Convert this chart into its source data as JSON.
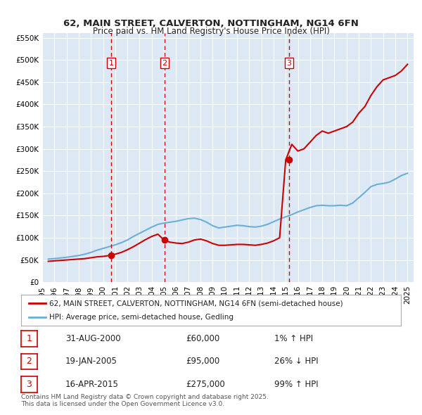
{
  "title_line1": "62, MAIN STREET, CALVERTON, NOTTINGHAM, NG14 6FN",
  "title_line2": "Price paid vs. HM Land Registry's House Price Index (HPI)",
  "background_color": "#ffffff",
  "plot_bg_color": "#dce9f5",
  "grid_color": "#ffffff",
  "ylabel_values": [
    "£0",
    "£50K",
    "£100K",
    "£150K",
    "£200K",
    "£250K",
    "£300K",
    "£350K",
    "£400K",
    "£450K",
    "£500K",
    "£550K"
  ],
  "ytick_values": [
    0,
    50000,
    100000,
    150000,
    200000,
    250000,
    300000,
    350000,
    400000,
    450000,
    500000,
    550000
  ],
  "ylim": [
    0,
    560000
  ],
  "xlim_start": 1995,
  "xlim_end": 2025.5,
  "hpi_color": "#6baed6",
  "price_color": "#cc0000",
  "vline_color": "#cc0000",
  "sales": [
    {
      "label": "1",
      "date_num": 2000.664,
      "price": 60000,
      "pct": "1%",
      "dir": "↑",
      "date_str": "31-AUG-2000"
    },
    {
      "label": "2",
      "date_num": 2005.055,
      "price": 95000,
      "pct": "26%",
      "dir": "↓",
      "date_str": "19-JAN-2005"
    },
    {
      "label": "3",
      "date_num": 2015.286,
      "price": 275000,
      "pct": "99%",
      "dir": "↑",
      "date_str": "16-APR-2015"
    }
  ],
  "legend_line1": "62, MAIN STREET, CALVERTON, NOTTINGHAM, NG14 6FN (semi-detached house)",
  "legend_line2": "HPI: Average price, semi-detached house, Gedling",
  "footer": "Contains HM Land Registry data © Crown copyright and database right 2025.\nThis data is licensed under the Open Government Licence v3.0.",
  "hpi_data_x": [
    1995.5,
    1996.0,
    1996.5,
    1997.0,
    1997.5,
    1998.0,
    1998.5,
    1999.0,
    1999.5,
    2000.0,
    2000.5,
    2001.0,
    2001.5,
    2002.0,
    2002.5,
    2003.0,
    2003.5,
    2004.0,
    2004.5,
    2005.0,
    2005.5,
    2006.0,
    2006.5,
    2007.0,
    2007.5,
    2008.0,
    2008.5,
    2009.0,
    2009.5,
    2010.0,
    2010.5,
    2011.0,
    2011.5,
    2012.0,
    2012.5,
    2013.0,
    2013.5,
    2014.0,
    2014.5,
    2015.0,
    2015.5,
    2016.0,
    2016.5,
    2017.0,
    2017.5,
    2018.0,
    2018.5,
    2019.0,
    2019.5,
    2020.0,
    2020.5,
    2021.0,
    2021.5,
    2022.0,
    2022.5,
    2023.0,
    2023.5,
    2024.0,
    2024.5,
    2025.0
  ],
  "hpi_data_y": [
    52000,
    53000,
    54500,
    56000,
    58000,
    60000,
    63000,
    67000,
    72000,
    76000,
    80000,
    84000,
    89000,
    95000,
    103000,
    110000,
    117000,
    124000,
    130000,
    133000,
    135000,
    137000,
    140000,
    143000,
    144000,
    141000,
    135000,
    127000,
    122000,
    124000,
    126000,
    128000,
    127000,
    125000,
    124000,
    126000,
    130000,
    136000,
    142000,
    147000,
    152000,
    158000,
    163000,
    168000,
    172000,
    173000,
    172000,
    172000,
    173000,
    172000,
    178000,
    190000,
    202000,
    215000,
    220000,
    222000,
    225000,
    232000,
    240000,
    245000
  ],
  "price_data_x": [
    1995.5,
    1996.0,
    1996.5,
    1997.0,
    1997.5,
    1998.0,
    1998.5,
    1999.0,
    1999.5,
    2000.0,
    2000.5,
    2001.0,
    2001.5,
    2002.0,
    2002.5,
    2003.0,
    2003.5,
    2004.0,
    2004.5,
    2005.0,
    2005.5,
    2006.0,
    2006.5,
    2007.0,
    2007.5,
    2008.0,
    2008.5,
    2009.0,
    2009.5,
    2010.0,
    2010.5,
    2011.0,
    2011.5,
    2012.0,
    2012.5,
    2013.0,
    2013.5,
    2014.0,
    2014.5,
    2015.0,
    2015.5,
    2016.0,
    2016.5,
    2017.0,
    2017.5,
    2018.0,
    2018.5,
    2019.0,
    2019.5,
    2020.0,
    2020.5,
    2021.0,
    2021.5,
    2022.0,
    2022.5,
    2023.0,
    2023.5,
    2024.0,
    2024.5,
    2025.0
  ],
  "price_data_y": [
    47000,
    48000,
    49000,
    50000,
    51000,
    52000,
    53000,
    55000,
    57000,
    58000,
    60000,
    63000,
    67000,
    73000,
    80000,
    88000,
    96000,
    103000,
    108000,
    95000,
    90000,
    88000,
    87000,
    90000,
    95000,
    97000,
    93000,
    87000,
    83000,
    83000,
    84000,
    85000,
    85000,
    84000,
    83000,
    85000,
    88000,
    93000,
    100000,
    275000,
    310000,
    295000,
    300000,
    315000,
    330000,
    340000,
    335000,
    340000,
    345000,
    350000,
    360000,
    380000,
    395000,
    420000,
    440000,
    455000,
    460000,
    465000,
    475000,
    490000
  ]
}
